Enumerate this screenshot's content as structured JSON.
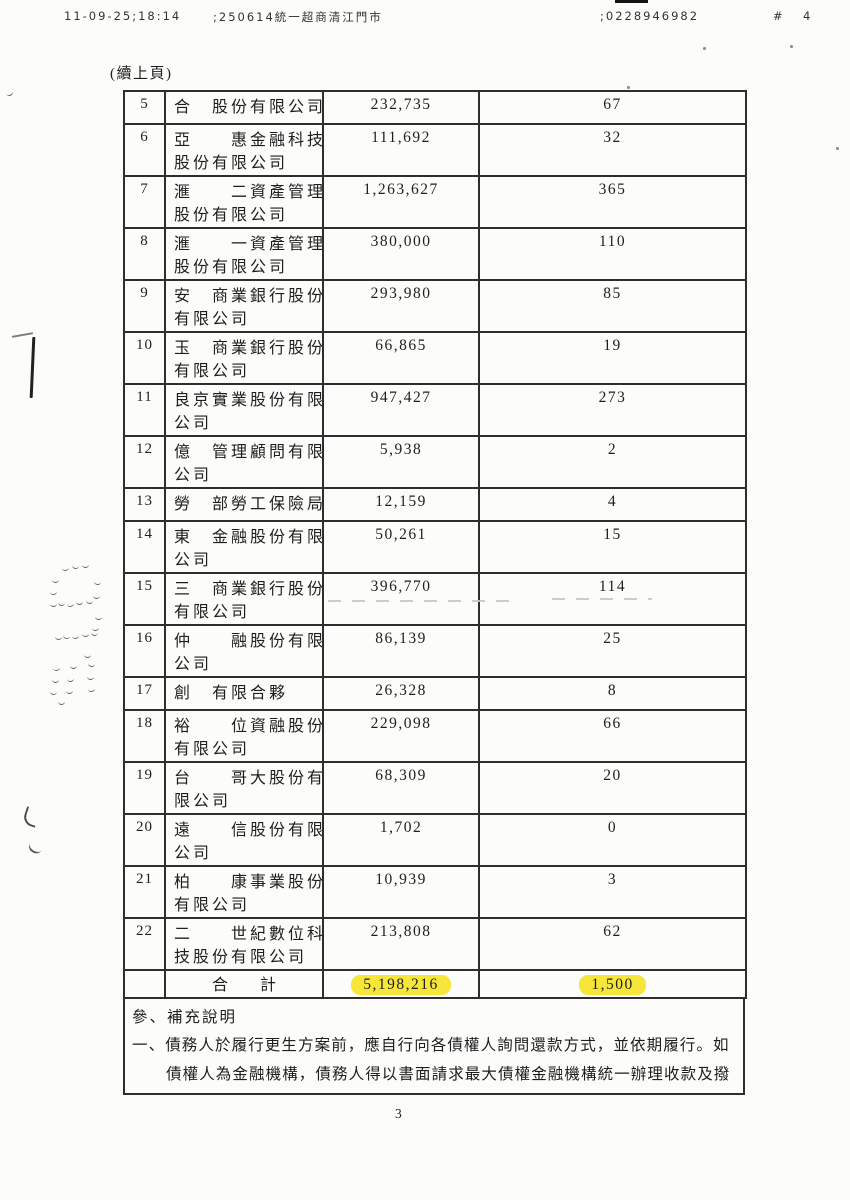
{
  "fax_header": {
    "time": "11-09-25;18:14",
    "station": ";250614統一超商清江門市",
    "fax_number": ";0228946982",
    "page_marker": "#",
    "page": "4"
  },
  "continuation_note": "(續上頁)",
  "table": {
    "rows": [
      {
        "no": "5",
        "name_lines": [
          "合　股份有限公司"
        ],
        "amount": "232,735",
        "count": "67"
      },
      {
        "no": "6",
        "name_lines": [
          "亞　　惠金融科技",
          "股份有限公司"
        ],
        "amount": "111,692",
        "count": "32"
      },
      {
        "no": "7",
        "name_lines": [
          "滙　　二資產管理",
          "股份有限公司"
        ],
        "amount": "1,263,627",
        "count": "365"
      },
      {
        "no": "8",
        "name_lines": [
          "滙　　一資產管理",
          "股份有限公司"
        ],
        "amount": "380,000",
        "count": "110"
      },
      {
        "no": "9",
        "name_lines": [
          "安　商業銀行股份",
          "有限公司"
        ],
        "amount": "293,980",
        "count": "85"
      },
      {
        "no": "10",
        "name_lines": [
          "玉　商業銀行股份",
          "有限公司"
        ],
        "amount": "66,865",
        "count": "19"
      },
      {
        "no": "11",
        "name_lines": [
          "良京實業股份有限",
          "公司"
        ],
        "amount": "947,427",
        "count": "273"
      },
      {
        "no": "12",
        "name_lines": [
          "億　管理顧問有限",
          "公司"
        ],
        "amount": "5,938",
        "count": "2"
      },
      {
        "no": "13",
        "name_lines": [
          "勞　部勞工保險局"
        ],
        "amount": "12,159",
        "count": "4"
      },
      {
        "no": "14",
        "name_lines": [
          "東　金融股份有限",
          "公司"
        ],
        "amount": "50,261",
        "count": "15"
      },
      {
        "no": "15",
        "name_lines": [
          "三　商業銀行股份",
          "有限公司"
        ],
        "amount": "396,770",
        "count": "114"
      },
      {
        "no": "16",
        "name_lines": [
          "仲　　融股份有限",
          "公司"
        ],
        "amount": "86,139",
        "count": "25"
      },
      {
        "no": "17",
        "name_lines": [
          "創　有限合夥"
        ],
        "amount": "26,328",
        "count": "8"
      },
      {
        "no": "18",
        "name_lines": [
          "裕　　位資融股份",
          "有限公司"
        ],
        "amount": "229,098",
        "count": "66"
      },
      {
        "no": "19",
        "name_lines": [
          "台　　哥大股份有",
          "限公司"
        ],
        "amount": "68,309",
        "count": "20"
      },
      {
        "no": "20",
        "name_lines": [
          "遠　　信股份有限",
          "公司"
        ],
        "amount": "1,702",
        "count": "0"
      },
      {
        "no": "21",
        "name_lines": [
          "柏　　康事業股份",
          "有限公司"
        ],
        "amount": "10,939",
        "count": "3"
      },
      {
        "no": "22",
        "name_lines": [
          "二　　世紀數位科",
          "技股份有限公司"
        ],
        "amount": "213,808",
        "count": "62"
      }
    ],
    "total": {
      "label": "合　　計",
      "amount": "5,198,216",
      "count": "1,500"
    }
  },
  "footer": {
    "section_title": "參、補充說明",
    "line1": "一、債務人於履行更生方案前，應自行向各債權人詢問還款方式，並依期履行。如",
    "line2": "債權人為金融機構，債務人得以書面請求最大債權金融機構統一辦理收款及撥"
  },
  "page_number": "3",
  "colors": {
    "highlight": "#f7e63a",
    "border": "#2e2e2e",
    "text": "#1e1e1e"
  }
}
